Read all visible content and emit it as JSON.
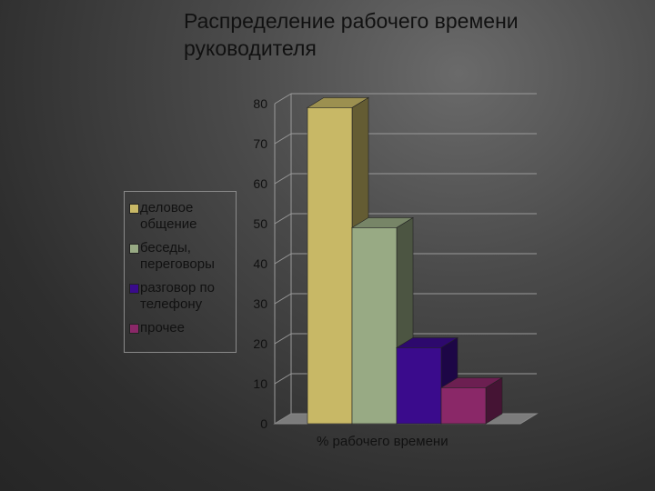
{
  "slide": {
    "title_line1": "Распределение рабочего времени",
    "title_line2": "руководителя"
  },
  "chart_data": {
    "type": "bar",
    "title": "Распределение рабочего времени руководителя",
    "xlabel": "% рабочего времени",
    "ylabel": "",
    "ylim": [
      0,
      80
    ],
    "yticks": [
      0,
      10,
      20,
      30,
      40,
      50,
      60,
      70,
      80
    ],
    "grid": true,
    "legend_position": "left",
    "series": [
      {
        "name": "деловое общение",
        "value": 79,
        "color": "#c8b866"
      },
      {
        "name": "беседы, переговоры",
        "value": 49,
        "color": "#98aa84"
      },
      {
        "name": "разговор по телефону",
        "value": 19,
        "color": "#3a0b8c"
      },
      {
        "name": "прочее",
        "value": 9,
        "color": "#8a2868"
      }
    ],
    "legend_labels": [
      "деловое\nобщение",
      "беседы,\nпереговоры",
      "разговор по\nтелефону",
      "прочее"
    ]
  }
}
